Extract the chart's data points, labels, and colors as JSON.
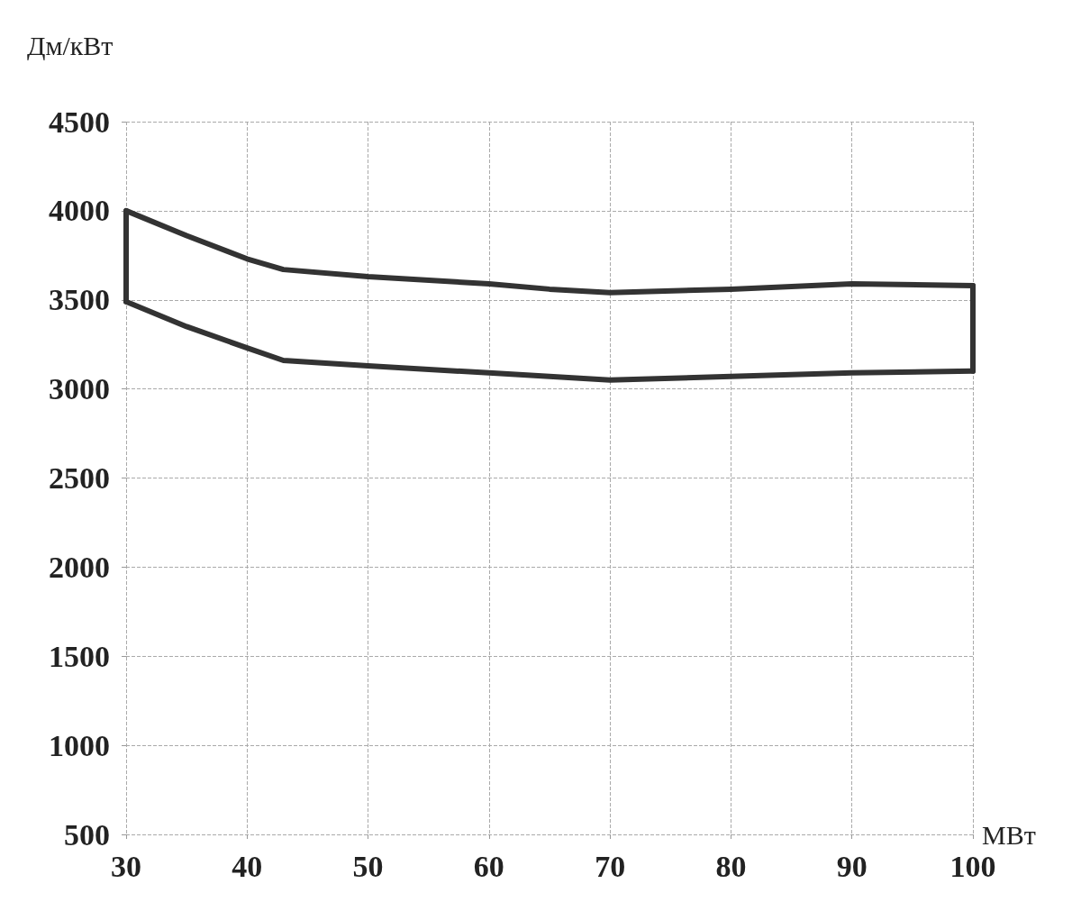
{
  "chart_data": {
    "type": "line",
    "xlabel": "МВт",
    "ylabel": "Дм/кВт",
    "series": [
      {
        "color": "#333333",
        "x": [
          30,
          35,
          40,
          43,
          50,
          60,
          65,
          70,
          80,
          90,
          100
        ],
        "values": [
          4000,
          3860,
          3730,
          3670,
          3630,
          3590,
          3560,
          3540,
          3560,
          3590,
          3580
        ]
      },
      {
        "color": "#333333",
        "x": [
          30,
          35,
          40,
          43,
          50,
          60,
          70,
          80,
          90,
          100
        ],
        "values": [
          3490,
          3350,
          3230,
          3160,
          3130,
          3090,
          3050,
          3070,
          3090,
          3100
        ]
      },
      {
        "color": "#333333",
        "x": [
          30,
          30
        ],
        "values": [
          3490,
          4000
        ]
      },
      {
        "color": "#333333",
        "x": [
          100,
          100
        ],
        "values": [
          3100,
          3580
        ]
      }
    ],
    "xlim": [
      30,
      100
    ],
    "xticks": [
      30,
      40,
      50,
      60,
      70,
      80,
      90,
      100
    ],
    "ylim": [
      500,
      4500
    ],
    "yticks": [
      500,
      1000,
      1500,
      2000,
      2500,
      3000,
      3500,
      4000,
      4500
    ],
    "grid": true,
    "marker": "none",
    "line_style": "solid"
  }
}
